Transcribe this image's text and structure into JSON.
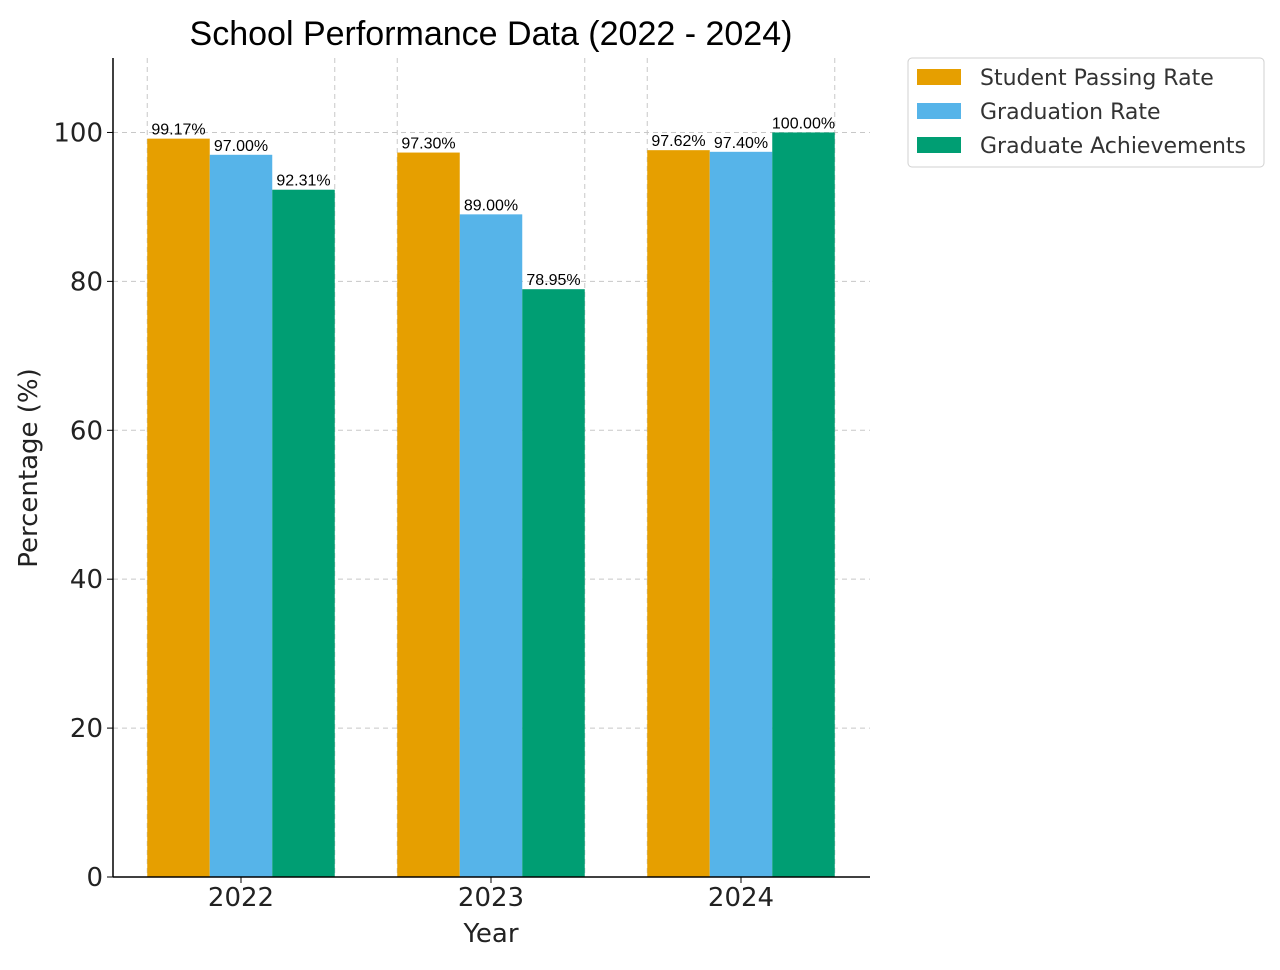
{
  "chart_data": {
    "type": "bar",
    "title": "School Performance Data (2022 - 2024)",
    "xlabel": "Year",
    "ylabel": "Percentage (%)",
    "categories": [
      "2022",
      "2023",
      "2024"
    ],
    "ylim": [
      0,
      110
    ],
    "yticks": [
      0,
      20,
      40,
      60,
      80,
      100
    ],
    "grid": true,
    "legend_position": "outside-top-right",
    "series": [
      {
        "name": "Student Passing Rate",
        "color": "#E69F00",
        "values": [
          99.17,
          97.3,
          97.62
        ],
        "labels": [
          "99.17%",
          "97.30%",
          "97.62%"
        ]
      },
      {
        "name": "Graduation Rate",
        "color": "#56B4E9",
        "values": [
          97.0,
          89.0,
          97.4
        ],
        "labels": [
          "97.00%",
          "89.00%",
          "97.40%"
        ]
      },
      {
        "name": "Graduate Achievements",
        "color": "#009E73",
        "values": [
          92.31,
          78.95,
          100.0
        ],
        "labels": [
          "92.31%",
          "78.95%",
          "100.00%"
        ]
      }
    ]
  }
}
